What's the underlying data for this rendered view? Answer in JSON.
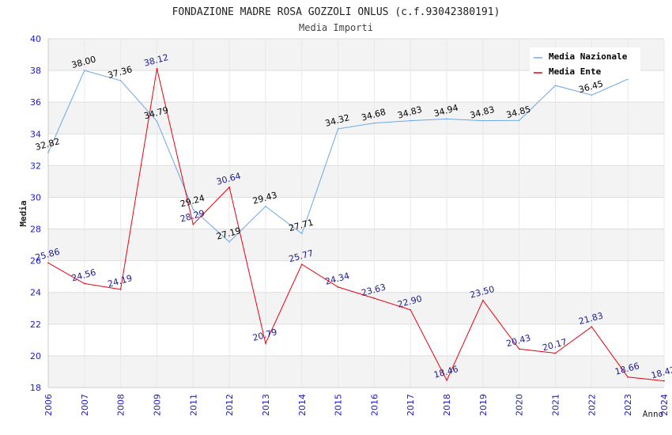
{
  "chart_data": {
    "type": "line",
    "title": "FONDAZIONE MADRE ROSA GOZZOLI ONLUS (c.f.93042380191)",
    "subtitle": "Media Importi",
    "xlabel": "Anno",
    "ylabel": "Media",
    "ylim": [
      18,
      40
    ],
    "yticks": [
      18,
      20,
      22,
      24,
      26,
      28,
      30,
      32,
      34,
      36,
      38,
      40
    ],
    "categories": [
      "2006",
      "2007",
      "2008",
      "2009",
      "2011",
      "2012",
      "2013",
      "2014",
      "2015",
      "2016",
      "2017",
      "2018",
      "2019",
      "2020",
      "2021",
      "2022",
      "2023",
      "2024"
    ],
    "series": [
      {
        "name": "Media Nazionale",
        "color": "#6aa8e8",
        "label_color": "#000000",
        "values": [
          32.82,
          38.0,
          37.36,
          34.79,
          29.24,
          27.19,
          29.43,
          27.71,
          34.32,
          34.68,
          34.83,
          34.94,
          34.83,
          34.85,
          37.05,
          36.45,
          37.45,
          null
        ],
        "labels": [
          "32.82",
          "38.00",
          "37.36",
          "34.79",
          "29.24",
          "27.19",
          "29.43",
          "27.71",
          "34.32",
          "34.68",
          "34.83",
          "34.94",
          "34.83",
          "34.85",
          "",
          "36.45",
          "",
          ""
        ]
      },
      {
        "name": "Media Ente",
        "color": "#e8000e",
        "label_color": "#1a1a8c",
        "values": [
          25.86,
          24.56,
          24.19,
          38.12,
          28.29,
          30.64,
          20.79,
          25.77,
          24.34,
          23.63,
          22.9,
          18.46,
          23.5,
          20.43,
          20.17,
          21.83,
          18.66,
          18.42
        ],
        "labels": [
          "25.86",
          "24.56",
          "24.19",
          "38.12",
          "28.29",
          "30.64",
          "20.79",
          "25.77",
          "24.34",
          "23.63",
          "22.90",
          "18.46",
          "23.50",
          "20.43",
          "20.17",
          "21.83",
          "18.66",
          "18.42"
        ]
      }
    ],
    "legend_position": "top-right",
    "grid": true
  }
}
